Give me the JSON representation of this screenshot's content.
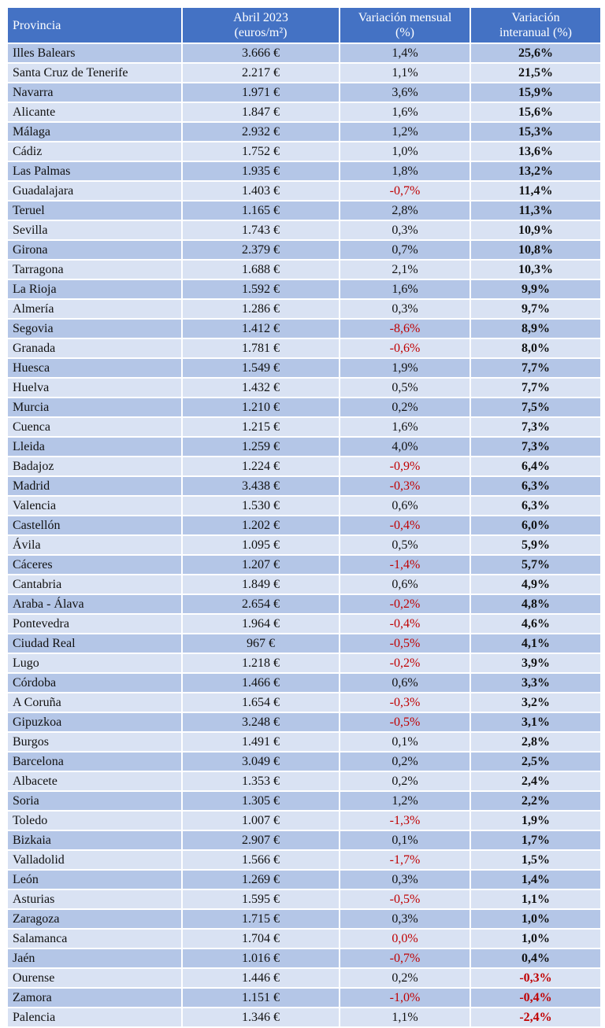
{
  "header": {
    "col_province": "Provincia",
    "col_price_l1": "Abril 2023",
    "col_price_l2": "(euros/m²)",
    "col_monthly_l1": "Variación mensual",
    "col_monthly_l2": "(%)",
    "col_yoy_l1": "Variación",
    "col_yoy_l2": "interanual (%)"
  },
  "negative_color": "#c00000",
  "header_color": "#4472c4",
  "row_colors": [
    "#b4c6e7",
    "#d9e2f3"
  ],
  "rows": [
    {
      "province": "Illes Balears",
      "price": "3.666 €",
      "monthly": "1,4%",
      "yoy": "25,6%"
    },
    {
      "province": "Santa Cruz de Tenerife",
      "price": "2.217 €",
      "monthly": "1,1%",
      "yoy": "21,5%"
    },
    {
      "province": "Navarra",
      "price": "1.971 €",
      "monthly": "3,6%",
      "yoy": "15,9%"
    },
    {
      "province": "Alicante",
      "price": "1.847 €",
      "monthly": "1,6%",
      "yoy": "15,6%"
    },
    {
      "province": "Málaga",
      "price": "2.932 €",
      "monthly": "1,2%",
      "yoy": "15,3%"
    },
    {
      "province": "Cádiz",
      "price": "1.752 €",
      "monthly": "1,0%",
      "yoy": "13,6%"
    },
    {
      "province": "Las Palmas",
      "price": "1.935 €",
      "monthly": "1,8%",
      "yoy": "13,2%"
    },
    {
      "province": "Guadalajara",
      "price": "1.403 €",
      "monthly": "-0,7%",
      "yoy": "11,4%",
      "monthly_neg": true
    },
    {
      "province": "Teruel",
      "price": "1.165 €",
      "monthly": "2,8%",
      "yoy": "11,3%"
    },
    {
      "province": "Sevilla",
      "price": "1.743 €",
      "monthly": "0,3%",
      "yoy": "10,9%"
    },
    {
      "province": "Girona",
      "price": "2.379 €",
      "monthly": "0,7%",
      "yoy": "10,8%"
    },
    {
      "province": "Tarragona",
      "price": "1.688 €",
      "monthly": "2,1%",
      "yoy": "10,3%"
    },
    {
      "province": "La Rioja",
      "price": "1.592 €",
      "monthly": "1,6%",
      "yoy": "9,9%"
    },
    {
      "province": "Almería",
      "price": "1.286 €",
      "monthly": "0,3%",
      "yoy": "9,7%"
    },
    {
      "province": "Segovia",
      "price": "1.412 €",
      "monthly": "-8,6%",
      "yoy": "8,9%",
      "monthly_neg": true
    },
    {
      "province": "Granada",
      "price": "1.781 €",
      "monthly": "-0,6%",
      "yoy": "8,0%",
      "monthly_neg": true
    },
    {
      "province": "Huesca",
      "price": "1.549 €",
      "monthly": "1,9%",
      "yoy": "7,7%"
    },
    {
      "province": "Huelva",
      "price": "1.432 €",
      "monthly": "0,5%",
      "yoy": "7,7%"
    },
    {
      "province": "Murcia",
      "price": "1.210 €",
      "monthly": "0,2%",
      "yoy": "7,5%"
    },
    {
      "province": "Cuenca",
      "price": "1.215 €",
      "monthly": "1,6%",
      "yoy": "7,3%"
    },
    {
      "province": "Lleida",
      "price": "1.259 €",
      "monthly": "4,0%",
      "yoy": "7,3%"
    },
    {
      "province": "Badajoz",
      "price": "1.224 €",
      "monthly": "-0,9%",
      "yoy": "6,4%",
      "monthly_neg": true
    },
    {
      "province": "Madrid",
      "price": "3.438 €",
      "monthly": "-0,3%",
      "yoy": "6,3%",
      "monthly_neg": true
    },
    {
      "province": "Valencia",
      "price": "1.530 €",
      "monthly": "0,6%",
      "yoy": "6,3%"
    },
    {
      "province": "Castellón",
      "price": "1.202 €",
      "monthly": "-0,4%",
      "yoy": "6,0%",
      "monthly_neg": true
    },
    {
      "province": "Ávila",
      "price": "1.095 €",
      "monthly": "0,5%",
      "yoy": "5,9%"
    },
    {
      "province": "Cáceres",
      "price": "1.207 €",
      "monthly": "-1,4%",
      "yoy": "5,7%",
      "monthly_neg": true
    },
    {
      "province": "Cantabria",
      "price": "1.849 €",
      "monthly": "0,6%",
      "yoy": "4,9%"
    },
    {
      "province": "Araba - Álava",
      "price": "2.654 €",
      "monthly": "-0,2%",
      "yoy": "4,8%",
      "monthly_neg": true
    },
    {
      "province": "Pontevedra",
      "price": "1.964 €",
      "monthly": "-0,4%",
      "yoy": "4,6%",
      "monthly_neg": true
    },
    {
      "province": "Ciudad Real",
      "price": "967 €",
      "monthly": "-0,5%",
      "yoy": "4,1%",
      "monthly_neg": true
    },
    {
      "province": "Lugo",
      "price": "1.218 €",
      "monthly": "-0,2%",
      "yoy": "3,9%",
      "monthly_neg": true
    },
    {
      "province": "Córdoba",
      "price": "1.466 €",
      "monthly": "0,6%",
      "yoy": "3,3%"
    },
    {
      "province": "A Coruña",
      "price": "1.654 €",
      "monthly": "-0,3%",
      "yoy": "3,2%",
      "monthly_neg": true
    },
    {
      "province": "Gipuzkoa",
      "price": "3.248 €",
      "monthly": "-0,5%",
      "yoy": "3,1%",
      "monthly_neg": true
    },
    {
      "province": "Burgos",
      "price": "1.491 €",
      "monthly": "0,1%",
      "yoy": "2,8%"
    },
    {
      "province": "Barcelona",
      "price": "3.049 €",
      "monthly": "0,2%",
      "yoy": "2,5%"
    },
    {
      "province": "Albacete",
      "price": "1.353 €",
      "monthly": "0,2%",
      "yoy": "2,4%"
    },
    {
      "province": "Soria",
      "price": "1.305 €",
      "monthly": "1,2%",
      "yoy": "2,2%"
    },
    {
      "province": "Toledo",
      "price": "1.007 €",
      "monthly": "-1,3%",
      "yoy": "1,9%",
      "monthly_neg": true
    },
    {
      "province": "Bizkaia",
      "price": "2.907 €",
      "monthly": "0,1%",
      "yoy": "1,7%"
    },
    {
      "province": "Valladolid",
      "price": "1.566 €",
      "monthly": "-1,7%",
      "yoy": "1,5%",
      "monthly_neg": true
    },
    {
      "province": "León",
      "price": "1.269 €",
      "monthly": "0,3%",
      "yoy": "1,4%"
    },
    {
      "province": "Asturias",
      "price": "1.595 €",
      "monthly": "-0,5%",
      "yoy": "1,1%",
      "monthly_neg": true
    },
    {
      "province": "Zaragoza",
      "price": "1.715 €",
      "monthly": "0,3%",
      "yoy": "1,0%"
    },
    {
      "province": "Salamanca",
      "price": "1.704 €",
      "monthly": "0,0%",
      "yoy": "1,0%",
      "monthly_neg": true
    },
    {
      "province": "Jaén",
      "price": "1.016 €",
      "monthly": "-0,7%",
      "yoy": "0,4%",
      "monthly_neg": true
    },
    {
      "province": "Ourense",
      "price": "1.446 €",
      "monthly": "0,2%",
      "yoy": "-0,3%",
      "yoy_neg": true
    },
    {
      "province": "Zamora",
      "price": "1.151 €",
      "monthly": "-1,0%",
      "yoy": "-0,4%",
      "monthly_neg": true,
      "yoy_neg": true
    },
    {
      "province": "Palencia",
      "price": "1.346 €",
      "monthly": "1,1%",
      "yoy": "-2,4%",
      "yoy_neg": true
    }
  ]
}
